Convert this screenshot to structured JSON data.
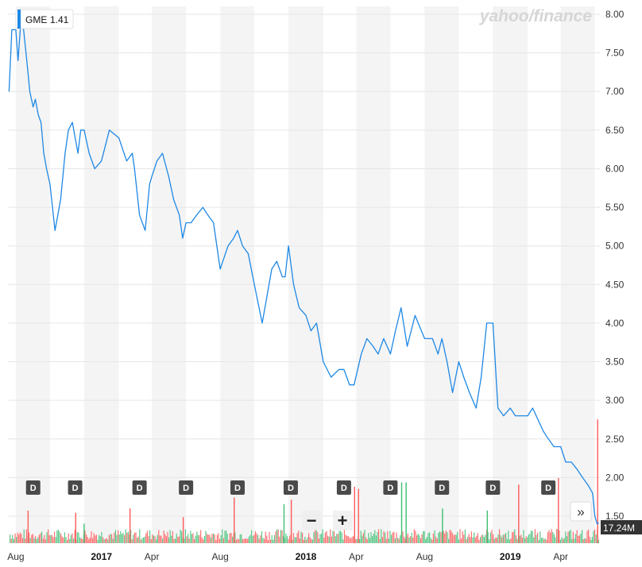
{
  "brand": "yahoo/finance",
  "legend": {
    "ticker": "GME",
    "value": "1.41",
    "color": "#1e88e5"
  },
  "volume_badge": "17.24M",
  "controls": {
    "zoom_out": "−",
    "zoom_in": "+",
    "expand": "»"
  },
  "colors": {
    "line": "#1e88e5",
    "vol_up": "#3fbf74",
    "vol_down": "#ff5a5a",
    "band": "#f4f4f4",
    "badge": "#4a4a4a"
  },
  "chart_data": {
    "type": "line",
    "title": "",
    "xlabel": "",
    "ylabel": "",
    "ylim": [
      1.4,
      8.1
    ],
    "y_ticks": [
      8.0,
      7.5,
      7.0,
      6.5,
      6.0,
      5.5,
      5.0,
      4.5,
      4.0,
      3.5,
      3.0,
      2.5,
      2.0,
      1.5
    ],
    "y_tick_labels": [
      "8.00",
      "7.50",
      "7.00",
      "6.50",
      "6.00",
      "5.50",
      "5.00",
      "4.50",
      "4.00",
      "3.50",
      "3.00",
      "2.50",
      "2.00",
      "1.50"
    ],
    "x_ticks": [
      {
        "label": "Aug",
        "date": "2016-08-01",
        "year": false
      },
      {
        "label": "2017",
        "date": "2017-01-01",
        "year": true
      },
      {
        "label": "Apr",
        "date": "2017-04-01",
        "year": false
      },
      {
        "label": "Aug",
        "date": "2017-08-01",
        "year": false
      },
      {
        "label": "2018",
        "date": "2018-01-01",
        "year": true
      },
      {
        "label": "Apr",
        "date": "2018-04-01",
        "year": false
      },
      {
        "label": "Aug",
        "date": "2018-08-01",
        "year": false
      },
      {
        "label": "2019",
        "date": "2019-01-01",
        "year": true
      },
      {
        "label": "Apr",
        "date": "2019-04-01",
        "year": false
      }
    ],
    "grid": true,
    "legend_position": "top-left",
    "series": [
      {
        "name": "GME",
        "x": [
          "2016-07-20",
          "2016-07-25",
          "2016-08-01",
          "2016-08-05",
          "2016-08-10",
          "2016-08-15",
          "2016-08-22",
          "2016-08-26",
          "2016-09-01",
          "2016-09-05",
          "2016-09-10",
          "2016-09-15",
          "2016-09-20",
          "2016-09-25",
          "2016-10-01",
          "2016-10-10",
          "2016-10-20",
          "2016-10-28",
          "2016-11-03",
          "2016-11-10",
          "2016-11-20",
          "2016-11-25",
          "2016-12-01",
          "2016-12-10",
          "2016-12-20",
          "2017-01-01",
          "2017-01-15",
          "2017-02-01",
          "2017-02-15",
          "2017-02-25",
          "2017-03-01",
          "2017-03-10",
          "2017-03-20",
          "2017-03-28",
          "2017-04-01",
          "2017-04-10",
          "2017-04-20",
          "2017-05-01",
          "2017-05-10",
          "2017-05-20",
          "2017-05-26",
          "2017-06-01",
          "2017-06-10",
          "2017-06-20",
          "2017-07-01",
          "2017-07-10",
          "2017-07-20",
          "2017-08-01",
          "2017-08-15",
          "2017-08-25",
          "2017-09-01",
          "2017-09-10",
          "2017-09-20",
          "2017-10-01",
          "2017-10-15",
          "2017-11-01",
          "2017-11-10",
          "2017-11-20",
          "2017-11-25",
          "2017-12-01",
          "2017-12-10",
          "2017-12-20",
          "2018-01-01",
          "2018-01-10",
          "2018-01-20",
          "2018-02-01",
          "2018-02-15",
          "2018-03-01",
          "2018-03-10",
          "2018-03-20",
          "2018-03-28",
          "2018-04-10",
          "2018-04-20",
          "2018-05-01",
          "2018-05-10",
          "2018-05-20",
          "2018-05-26",
          "2018-06-01",
          "2018-06-10",
          "2018-06-20",
          "2018-07-01",
          "2018-07-15",
          "2018-08-01",
          "2018-08-15",
          "2018-08-25",
          "2018-09-01",
          "2018-09-10",
          "2018-09-20",
          "2018-10-01",
          "2018-10-10",
          "2018-10-20",
          "2018-11-01",
          "2018-11-10",
          "2018-11-20",
          "2018-12-01",
          "2018-12-10",
          "2018-12-20",
          "2019-01-01",
          "2019-01-10",
          "2019-01-20",
          "2019-02-01",
          "2019-02-10",
          "2019-03-01",
          "2019-03-10",
          "2019-03-20",
          "2019-04-01",
          "2019-04-10",
          "2019-04-20",
          "2019-05-01",
          "2019-05-10",
          "2019-05-20",
          "2019-05-28",
          "2019-06-01",
          "2019-06-05",
          "2019-06-08"
        ],
        "values": [
          7.0,
          7.8,
          7.8,
          7.4,
          7.9,
          7.8,
          7.3,
          7.0,
          6.8,
          6.9,
          6.7,
          6.6,
          6.2,
          6.0,
          5.8,
          5.2,
          5.6,
          6.2,
          6.5,
          6.6,
          6.2,
          6.5,
          6.5,
          6.2,
          6.0,
          6.1,
          6.5,
          6.4,
          6.1,
          6.2,
          6.0,
          5.4,
          5.2,
          5.8,
          5.9,
          6.1,
          6.2,
          5.9,
          5.6,
          5.4,
          5.1,
          5.3,
          5.3,
          5.4,
          5.5,
          5.4,
          5.3,
          4.7,
          5.0,
          5.1,
          5.2,
          5.0,
          4.9,
          4.5,
          4.0,
          4.7,
          4.8,
          4.6,
          4.6,
          5.0,
          4.5,
          4.2,
          4.1,
          3.9,
          4.0,
          3.5,
          3.3,
          3.4,
          3.4,
          3.2,
          3.2,
          3.6,
          3.8,
          3.7,
          3.6,
          3.8,
          3.7,
          3.6,
          3.9,
          4.2,
          3.7,
          4.1,
          3.8,
          3.8,
          3.6,
          3.8,
          3.5,
          3.1,
          3.5,
          3.3,
          3.1,
          2.9,
          3.3,
          4.0,
          4.0,
          2.9,
          2.8,
          2.9,
          2.8,
          2.8,
          2.8,
          2.9,
          2.6,
          2.5,
          2.4,
          2.4,
          2.2,
          2.2,
          2.1,
          2.0,
          1.9,
          1.8,
          1.5,
          1.4,
          1.41
        ]
      }
    ],
    "dividends": [
      "2016-09-01",
      "2016-11-15",
      "2017-03-10",
      "2017-06-01",
      "2017-09-01",
      "2017-12-05",
      "2018-03-10",
      "2018-06-01",
      "2018-09-01",
      "2018-12-01",
      "2019-03-10"
    ],
    "volume": {
      "unit": "M",
      "last": 17.24,
      "ylim": [
        0,
        60
      ],
      "spikes": [
        {
          "date": "2016-08-22",
          "value": 15,
          "dir": "down"
        },
        {
          "date": "2016-11-15",
          "value": 14,
          "dir": "down"
        },
        {
          "date": "2016-11-30",
          "value": 9,
          "dir": "up"
        },
        {
          "date": "2017-02-20",
          "value": 16,
          "dir": "down"
        },
        {
          "date": "2017-05-26",
          "value": 12,
          "dir": "down"
        },
        {
          "date": "2017-08-25",
          "value": 21,
          "dir": "down"
        },
        {
          "date": "2017-11-22",
          "value": 18,
          "dir": "up"
        },
        {
          "date": "2017-12-05",
          "value": 20,
          "dir": "down"
        },
        {
          "date": "2018-03-28",
          "value": 26,
          "dir": "down"
        },
        {
          "date": "2018-04-04",
          "value": 25,
          "dir": "down"
        },
        {
          "date": "2018-06-20",
          "value": 28,
          "dir": "up"
        },
        {
          "date": "2018-06-28",
          "value": 28,
          "dir": "up"
        },
        {
          "date": "2018-09-01",
          "value": 16,
          "dir": "up"
        },
        {
          "date": "2018-11-20",
          "value": 15,
          "dir": "up"
        },
        {
          "date": "2019-01-15",
          "value": 27,
          "dir": "down"
        },
        {
          "date": "2019-03-27",
          "value": 30,
          "dir": "down"
        },
        {
          "date": "2019-06-05",
          "value": 57,
          "dir": "down"
        }
      ]
    }
  }
}
